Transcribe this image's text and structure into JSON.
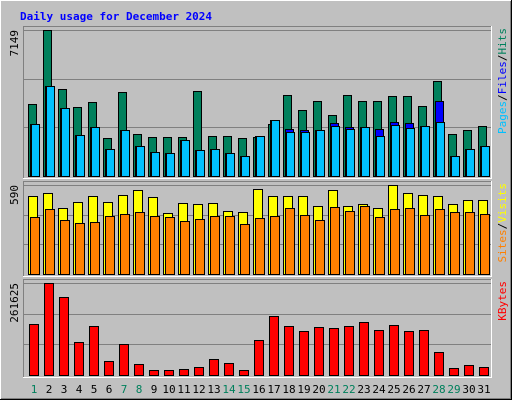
{
  "chart_data": {
    "type": "bar",
    "title": "Daily usage for December 2024",
    "categories": [
      "1",
      "2",
      "3",
      "4",
      "5",
      "6",
      "7",
      "8",
      "9",
      "10",
      "11",
      "12",
      "13",
      "14",
      "15",
      "16",
      "17",
      "18",
      "19",
      "20",
      "21",
      "22",
      "23",
      "24",
      "25",
      "26",
      "27",
      "28",
      "29",
      "30",
      "31"
    ],
    "weekend_days": [
      1,
      7,
      8,
      14,
      15,
      21,
      22,
      28,
      29
    ],
    "colors": {
      "background": "#c0c0c0",
      "title": "#0000ff",
      "axis_label": "#000000",
      "weekday_label": "#000000",
      "weekend_label": "#00805c",
      "hits": "#00805c",
      "files": "#0000ff",
      "pages": "#00c0ff",
      "visits": "#ffff00",
      "sites": "#ff8000",
      "kbytes": "#ff0000"
    },
    "panels": [
      {
        "id": "hits-files-pages",
        "ymax": 7149,
        "ymax_label": "7149",
        "legend": [
          "Pages",
          "/",
          "Files",
          "/",
          "Hits"
        ],
        "legend_colors": [
          "#00c0ff",
          "#000000",
          "#0000ff",
          "#000000",
          "#00805c"
        ],
        "series": [
          {
            "name": "Hits",
            "color": "#00805c",
            "values": [
              3540,
              7149,
              4260,
              3400,
              3640,
              1850,
              4130,
              2080,
              1890,
              1890,
              1900,
              4150,
              1980,
              1980,
              1870,
              1890,
              2550,
              3990,
              3220,
              3660,
              3000,
              3970,
              3680,
              3680,
              3900,
              3930,
              3420,
              4660,
              2070,
              2270,
              2460
            ]
          },
          {
            "name": "Files",
            "color": "#0000ff",
            "values": [
              2540,
              4400,
              3340,
              2020,
              2410,
              1340,
              2230,
              1460,
              1160,
              1130,
              1750,
              1250,
              1330,
              1110,
              960,
              1970,
              2760,
              2300,
              2260,
              2240,
              2600,
              2410,
              2410,
              2310,
              2620,
              2600,
              2460,
              3680,
              1000,
              1300,
              1450
            ]
          },
          {
            "name": "Pages",
            "color": "#00c0ff",
            "values": [
              2540,
              4400,
              3340,
              2020,
              2410,
              1340,
              2230,
              1460,
              1160,
              1130,
              1750,
              1250,
              1330,
              1110,
              960,
              1970,
              2760,
              2150,
              2160,
              2240,
              2450,
              2310,
              2410,
              1980,
              2520,
              2360,
              2460,
              2630,
              1000,
              1300,
              1450
            ]
          }
        ]
      },
      {
        "id": "visits-sites",
        "ymax": 590,
        "ymax_label": "590",
        "legend": [
          "Sites",
          "/",
          "Visits"
        ],
        "legend_colors": [
          "#ff8000",
          "#000000",
          "#ffff00"
        ],
        "series": [
          {
            "name": "Visits",
            "color": "#ffff00",
            "values": [
              515,
              540,
              440,
              480,
              520,
              480,
              525,
              560,
              510,
              405,
              470,
              465,
              470,
              420,
              410,
              565,
              520,
              515,
              515,
              450,
              555,
              450,
              465,
              440,
              590,
              540,
              525,
              520,
              465,
              490,
              490
            ]
          },
          {
            "name": "Sites",
            "color": "#ff8000",
            "values": [
              375,
              430,
              355,
              335,
              345,
              385,
              395,
              410,
              385,
              375,
              350,
              365,
              385,
              385,
              330,
              370,
              385,
              440,
              390,
              360,
              445,
              415,
              450,
              375,
              430,
              435,
              390,
              430,
              410,
              410,
              395
            ]
          }
        ]
      },
      {
        "id": "kbytes",
        "ymax": 261625,
        "ymax_label": "261625",
        "legend": [
          "KBytes"
        ],
        "legend_colors": [
          "#ff0000"
        ],
        "series": [
          {
            "name": "KBytes",
            "color": "#ff0000",
            "values": [
              145000,
              261625,
              222000,
              94000,
              138000,
              40000,
              88000,
              31000,
              15000,
              15000,
              18000,
              23000,
              46000,
              34000,
              13000,
              99000,
              168000,
              140000,
              124000,
              136000,
              135000,
              139000,
              151000,
              128000,
              143000,
              124000,
              129000,
              65000,
              21000,
              28000,
              24000
            ]
          }
        ]
      }
    ]
  }
}
